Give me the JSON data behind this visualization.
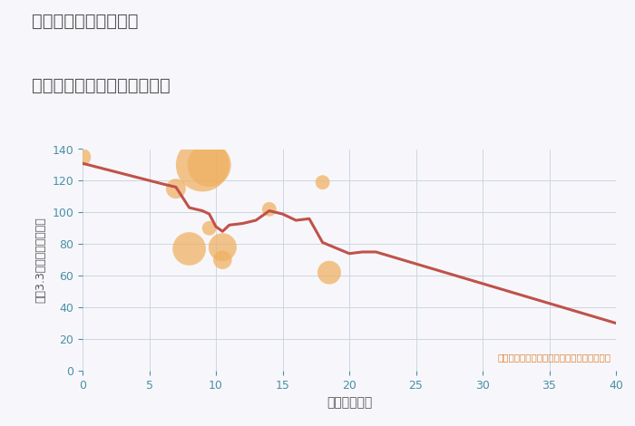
{
  "title_line1": "兵庫県姫路市久保町の",
  "title_line2": "築年数別中古マンション価格",
  "xlabel": "築年数（年）",
  "ylabel": "坪（3.3㎡）単価（万円）",
  "annotation": "円の大きさは、取引のあった物件面積を示す",
  "xlim": [
    0,
    40
  ],
  "ylim": [
    0,
    140
  ],
  "xticks": [
    0,
    5,
    10,
    15,
    20,
    25,
    30,
    35,
    40
  ],
  "yticks": [
    0,
    20,
    40,
    60,
    80,
    100,
    120,
    140
  ],
  "line_x": [
    0,
    6,
    7,
    8,
    9,
    9.5,
    10,
    10.5,
    11,
    12,
    13,
    14,
    15,
    16,
    17,
    18,
    20,
    21,
    22,
    40
  ],
  "line_y": [
    131,
    118,
    116,
    103,
    101,
    99,
    91,
    88,
    92,
    93,
    95,
    101,
    99,
    95,
    96,
    81,
    74,
    75,
    75,
    30
  ],
  "line_color": "#c0524a",
  "line_width": 2.2,
  "scatter_x": [
    0,
    9,
    9.5,
    7,
    8,
    9.5,
    10.5,
    10.5,
    14,
    18,
    18.5
  ],
  "scatter_y": [
    135,
    130,
    130,
    115,
    77,
    90,
    78,
    70,
    102,
    119,
    62
  ],
  "scatter_sizes": [
    180,
    1800,
    1200,
    250,
    700,
    130,
    500,
    220,
    130,
    130,
    350
  ],
  "scatter_color": "#f0b060",
  "scatter_alpha": 0.72,
  "bg_color": "#f7f7fb",
  "grid_color": "#ccd5e0",
  "title_color": "#555555",
  "tick_color": "#4a90a4",
  "annotation_color": "#e08030"
}
